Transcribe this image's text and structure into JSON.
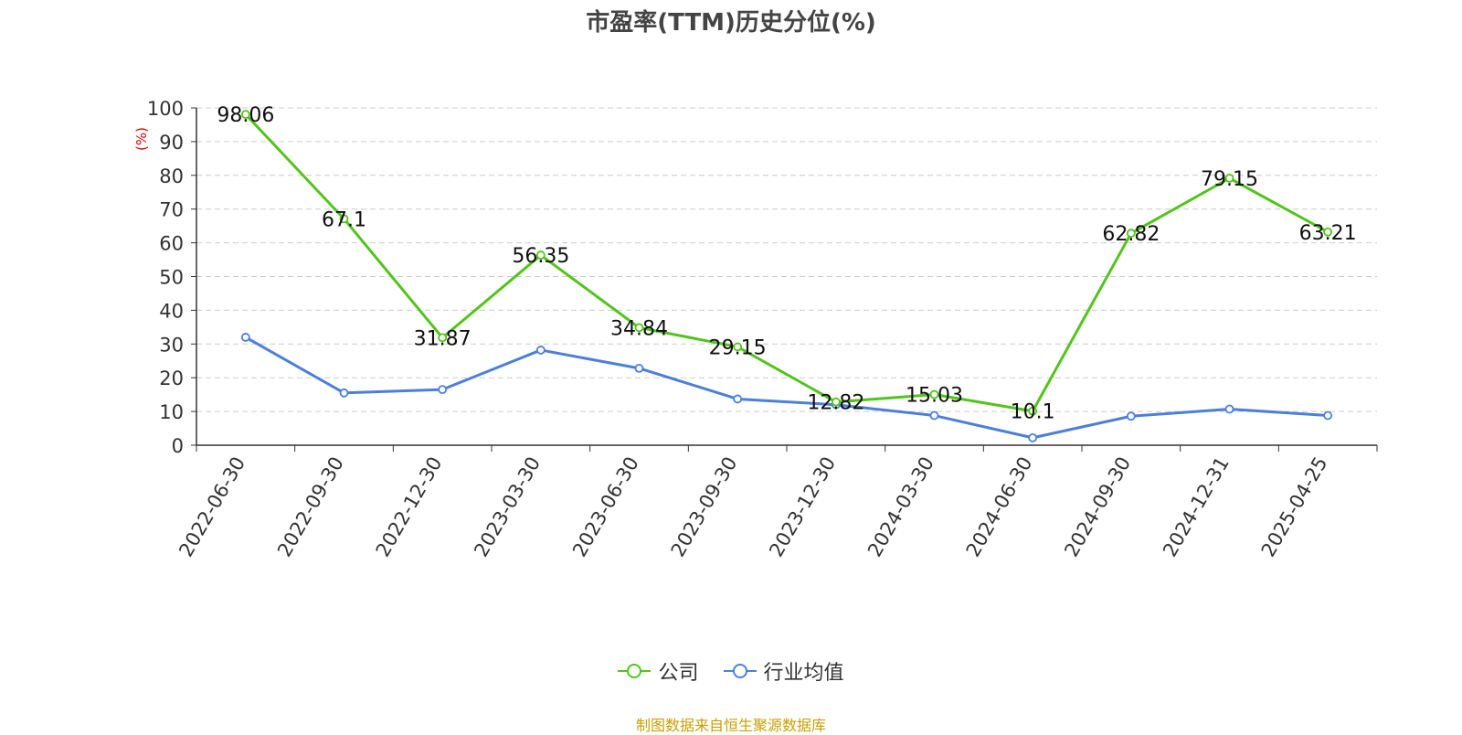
{
  "title": "市盈率(TTM)历史分位(%)",
  "source_note": "制图数据来自恒生聚源数据库",
  "colors": {
    "company": "#52c41a",
    "industry": "#4c7fdb",
    "unit_label": "#e00000",
    "source": "#c9a000"
  },
  "legend": [
    {
      "name": "公司",
      "color": "#52c41a"
    },
    {
      "name": "行业均值",
      "color": "#4c7fdb"
    }
  ],
  "chart_data": {
    "type": "line",
    "title": "市盈率(TTM)历史分位(%)",
    "ylabel": "(%)",
    "xlabel": "",
    "ylim": [
      0,
      100
    ],
    "yticks": [
      0,
      10,
      20,
      30,
      40,
      50,
      60,
      70,
      80,
      90,
      100
    ],
    "grid": true,
    "legend_position": "bottom",
    "categories": [
      "2022-06-30",
      "2022-09-30",
      "2022-12-30",
      "2023-03-30",
      "2023-06-30",
      "2023-09-30",
      "2023-12-30",
      "2024-03-30",
      "2024-06-30",
      "2024-09-30",
      "2024-12-31",
      "2025-04-25"
    ],
    "series": [
      {
        "name": "公司",
        "color": "#52c41a",
        "show_labels": true,
        "values": [
          98.06,
          67.1,
          31.87,
          56.35,
          34.84,
          29.15,
          12.82,
          15.03,
          10.1,
          62.82,
          79.15,
          63.21
        ]
      },
      {
        "name": "行业均值",
        "color": "#4c7fdb",
        "show_labels": false,
        "values": [
          32,
          15.5,
          16.5,
          28.2,
          22.8,
          13.7,
          12.0,
          8.8,
          2.2,
          8.6,
          10.7,
          8.8
        ]
      }
    ]
  }
}
